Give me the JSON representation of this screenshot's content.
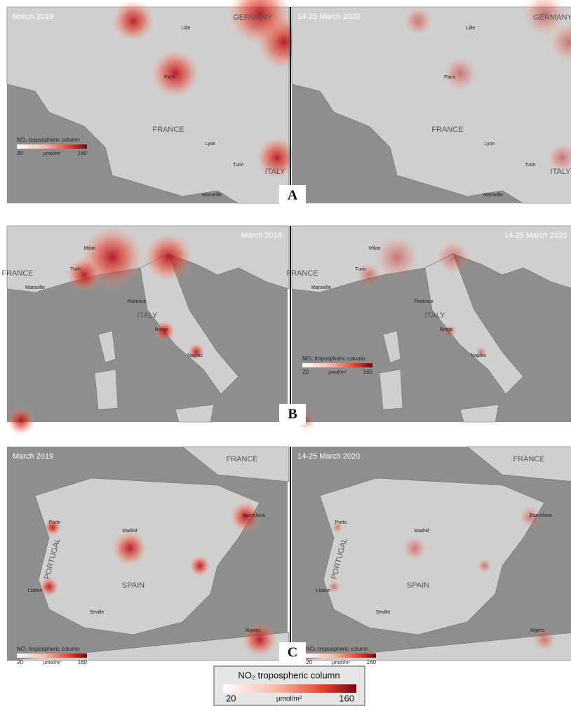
{
  "panels": [
    {
      "letter": "A",
      "maps": [
        {
          "title": "March 2019",
          "places": [
            "Lille",
            "GERMANY",
            "Paris",
            "FRANCE",
            "Lyon",
            "Turin",
            "ITALY",
            "Marseille"
          ]
        },
        {
          "title": "14-25 March 2020",
          "places": [
            "Lille",
            "GERMANY",
            "Paris",
            "FRANCE",
            "Lyon",
            "Turin",
            "ITALY",
            "Marseille"
          ]
        }
      ]
    },
    {
      "letter": "B",
      "maps": [
        {
          "title": "March 2019",
          "places": [
            "FRANCE",
            "Turin",
            "Milan",
            "Marseille",
            "Florence",
            "ITALY",
            "Rome",
            "Naples"
          ]
        },
        {
          "title": "14-25 March 2020",
          "places": [
            "FRANCE",
            "Turin",
            "Milan",
            "Marseille",
            "Florence",
            "ITALY",
            "Rome",
            "Naples"
          ]
        }
      ]
    },
    {
      "letter": "C",
      "maps": [
        {
          "title": "March 2019",
          "places": [
            "FRANCE",
            "Barcelona",
            "Porto",
            "Madrid",
            "PORTUGAL",
            "SPAIN",
            "Lisbon",
            "Seville",
            "Algiers"
          ]
        },
        {
          "title": "14-25 March 2020",
          "places": [
            "FRANCE",
            "Barcelona",
            "Porto",
            "Madrid",
            "PORTUGAL",
            "SPAIN",
            "Lisbon",
            "Seville",
            "Algiers"
          ]
        }
      ]
    }
  ],
  "legend": {
    "title": "NO₂ tropospheric column",
    "unit": "µmol/m²",
    "min": 20,
    "max": 160
  }
}
